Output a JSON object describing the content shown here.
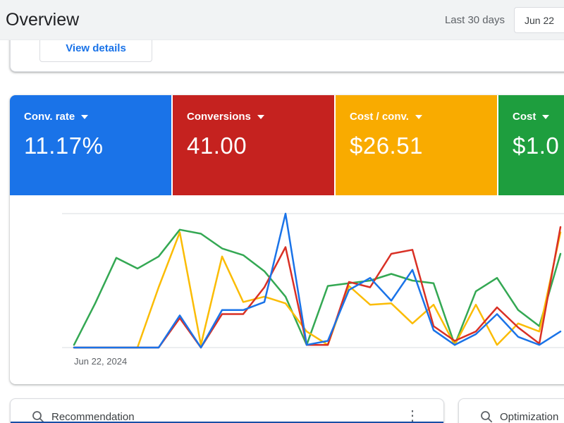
{
  "header": {
    "title": "Overview",
    "date_range_label": "Last 30 days",
    "date_button": "Jun 22"
  },
  "top_card": {
    "view_details_label": "View details"
  },
  "scorecards": [
    {
      "label": "Conv. rate",
      "value": "11.17%",
      "color": "#1a73e8"
    },
    {
      "label": "Conversions",
      "value": "41.00",
      "color": "#c5221f"
    },
    {
      "label": "Cost / conv.",
      "value": "$26.51",
      "color": "#f9ab00"
    },
    {
      "label": "Cost",
      "value": "$1.0",
      "color": "#1e9e3e"
    }
  ],
  "chart": {
    "x_label": "Jun 22, 2024"
  },
  "chart_data": {
    "type": "line",
    "title": "",
    "xlabel": "",
    "ylabel": "",
    "x_unit": "day",
    "x_count": 24,
    "x_start_label": "Jun 22, 2024",
    "ylim": [
      0,
      100
    ],
    "y_axis": "unlabeled; values estimated as 0-100 percent of plot height",
    "grid": "top and bottom horizontal gridlines only",
    "legend_position": "none",
    "series": [
      {
        "name": "Conv. rate",
        "color": "#1a73e8",
        "values": [
          0,
          0,
          0,
          0,
          0,
          24,
          0,
          28,
          28,
          34,
          100,
          2,
          5,
          43,
          52,
          35,
          58,
          13,
          2,
          10,
          25,
          8,
          2,
          12
        ]
      },
      {
        "name": "Conversions",
        "color": "#d93025",
        "values": [
          0,
          0,
          0,
          0,
          0,
          22,
          0,
          25,
          25,
          45,
          75,
          2,
          2,
          49,
          45,
          70,
          73,
          16,
          5,
          12,
          30,
          15,
          3,
          90
        ]
      },
      {
        "name": "Cost / conv.",
        "color": "#fbbc04",
        "values": [
          0,
          0,
          0,
          0,
          45,
          86,
          2,
          68,
          34,
          38,
          33,
          12,
          2,
          46,
          32,
          33,
          18,
          32,
          2,
          32,
          2,
          18,
          12,
          86
        ]
      },
      {
        "name": "Cost",
        "color": "#34a853",
        "values": [
          2,
          33,
          67,
          59,
          68,
          88,
          85,
          74,
          69,
          57,
          38,
          2,
          46,
          48,
          50,
          55,
          50,
          48,
          2,
          42,
          52,
          28,
          16,
          70
        ]
      }
    ]
  },
  "bottom_cards": {
    "left": {
      "title": "Recommendation",
      "icon": "search-icon",
      "menu_icon": "kebab-menu-icon"
    },
    "right": {
      "title": "Optimization",
      "icon": "search-icon"
    }
  },
  "icons": {
    "kebab": "⋮"
  }
}
